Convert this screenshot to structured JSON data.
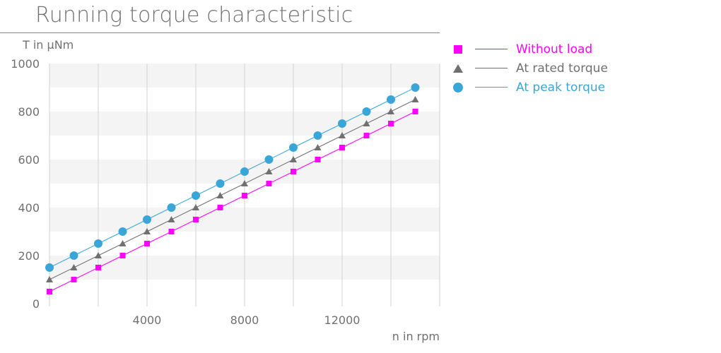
{
  "chart_data": {
    "type": "line",
    "title": "Running torque characteristic",
    "xlabel": "n in rpm",
    "ylabel": "T in µNm",
    "xlim": [
      0,
      16000
    ],
    "ylim": [
      0,
      1000
    ],
    "x_ticks": [
      4000,
      8000,
      12000
    ],
    "y_ticks": [
      0,
      200,
      400,
      600,
      800,
      1000
    ],
    "grid": "vertical lines every 2000 rpm, alternating horizontal bands",
    "legend_position": "right",
    "x": [
      0,
      1000,
      2000,
      3000,
      4000,
      5000,
      6000,
      7000,
      8000,
      9000,
      10000,
      11000,
      12000,
      13000,
      14000,
      15000
    ],
    "series": [
      {
        "name": "Without load",
        "color": "#ff00ff",
        "marker": "square",
        "values": [
          50,
          100,
          150,
          200,
          250,
          300,
          350,
          400,
          450,
          500,
          550,
          600,
          650,
          700,
          750,
          800
        ]
      },
      {
        "name": "At rated torque",
        "color": "#707070",
        "marker": "triangle",
        "values": [
          100,
          150,
          200,
          250,
          300,
          350,
          400,
          450,
          500,
          550,
          600,
          650,
          700,
          750,
          800,
          850
        ]
      },
      {
        "name": "At peak torque",
        "color": "#3aa6d8",
        "marker": "circle",
        "values": [
          150,
          200,
          250,
          300,
          350,
          400,
          450,
          500,
          550,
          600,
          650,
          700,
          750,
          800,
          850,
          900
        ]
      }
    ]
  }
}
